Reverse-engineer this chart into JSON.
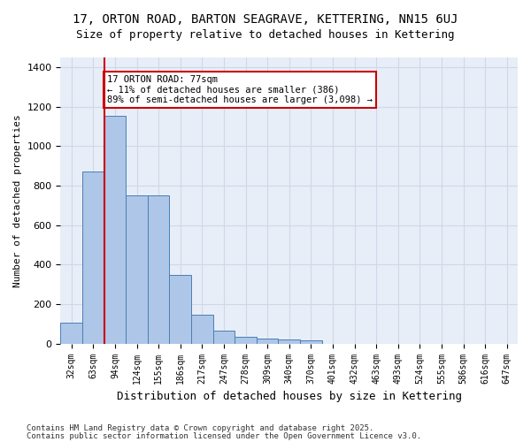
{
  "title": "17, ORTON ROAD, BARTON SEAGRAVE, KETTERING, NN15 6UJ",
  "subtitle": "Size of property relative to detached houses in Kettering",
  "xlabel": "Distribution of detached houses by size in Kettering",
  "ylabel": "Number of detached properties",
  "categories": [
    "32sqm",
    "63sqm",
    "94sqm",
    "124sqm",
    "155sqm",
    "186sqm",
    "217sqm",
    "247sqm",
    "278sqm",
    "309sqm",
    "340sqm",
    "370sqm",
    "401sqm",
    "432sqm",
    "463sqm",
    "493sqm",
    "524sqm",
    "555sqm",
    "586sqm",
    "616sqm",
    "647sqm"
  ],
  "values": [
    105,
    870,
    1155,
    750,
    750,
    350,
    145,
    65,
    35,
    25,
    20,
    15,
    0,
    0,
    0,
    0,
    0,
    0,
    0,
    0,
    0
  ],
  "bar_color": "#aec6e8",
  "bar_edge_color": "#4a7fb5",
  "red_line_x": 1.5,
  "annotation_text": "17 ORTON ROAD: 77sqm\n← 11% of detached houses are smaller (386)\n89% of semi-detached houses are larger (3,098) →",
  "annotation_box_color": "#ffffff",
  "annotation_box_edge": "#cc0000",
  "red_line_color": "#cc0000",
  "grid_color": "#d0d8e8",
  "bg_color": "#e8eef8",
  "ylim": [
    0,
    1450
  ],
  "footer_line1": "Contains HM Land Registry data © Crown copyright and database right 2025.",
  "footer_line2": "Contains public sector information licensed under the Open Government Licence v3.0."
}
